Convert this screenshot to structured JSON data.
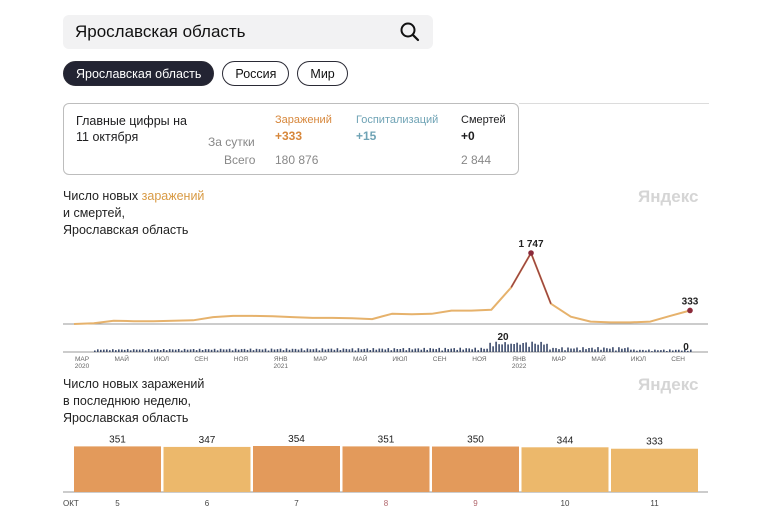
{
  "search": {
    "value": "Ярославская область"
  },
  "chips": [
    "Ярославская область",
    "Россия",
    "Мир"
  ],
  "stats": {
    "heading_line1": "Главные цифры на",
    "heading_line2": "11 октября",
    "row_day": "За сутки",
    "row_total": "Всего",
    "infections": {
      "label": "Заражений",
      "day": "+333",
      "total": "180 876"
    },
    "hospital": {
      "label": "Госпитализаций",
      "day": "+15"
    },
    "deaths": {
      "label": "Смертей",
      "day": "+0",
      "total": "2 844"
    }
  },
  "chart1": {
    "title_pre": "Число новых ",
    "title_highlight": "заражений",
    "title_line2": "и смертей,",
    "title_line3": "Ярославская область",
    "watermark": "Яндекс"
  },
  "chart2": {
    "title_line1": "Число новых заражений",
    "title_line2": "в последнюю неделю,",
    "title_line3": "Ярославская область",
    "watermark": "Яндекс"
  },
  "colors": {
    "infections_line": "#e6b26c",
    "peak_line": "#8b2a3a",
    "deaths_bars": "#3b4a6b",
    "hospital": "#6fa3b5",
    "bar_dark": "#e39a5b",
    "bar_light": "#ecb86b"
  },
  "chart_data": [
    {
      "type": "line",
      "title": "Число новых заражений и смертей, Ярославская область",
      "series": [
        {
          "name": "заражений",
          "x": [
            "2020-03",
            "2020-04",
            "2020-05",
            "2020-06",
            "2020-07",
            "2020-08",
            "2020-09",
            "2020-10",
            "2020-11",
            "2020-12",
            "2021-01",
            "2021-02",
            "2021-03",
            "2021-04",
            "2021-05",
            "2021-06",
            "2021-07",
            "2021-08",
            "2021-09",
            "2021-10",
            "2021-11",
            "2021-12",
            "2022-01",
            "2022-02",
            "2022-03",
            "2022-04",
            "2022-05",
            "2022-06",
            "2022-07",
            "2022-08",
            "2022-09",
            "2022-10"
          ],
          "values": [
            0,
            20,
            80,
            70,
            70,
            80,
            90,
            170,
            200,
            200,
            190,
            170,
            150,
            150,
            140,
            120,
            250,
            240,
            250,
            330,
            330,
            350,
            900,
            1747,
            500,
            180,
            60,
            40,
            40,
            60,
            200,
            333
          ]
        }
      ],
      "annotations": [
        {
          "label": "1 747",
          "x": "2022-02",
          "value": 1747
        },
        {
          "label": "333",
          "x": "2022-10",
          "value": 333
        },
        {
          "label": "20",
          "x": "2021-12",
          "value": 20
        },
        {
          "label": "0",
          "x": "2022-10",
          "value": 0
        }
      ],
      "x_ticks": [
        {
          "month": "МАР",
          "year": "2020",
          "x": "2020-03"
        },
        {
          "month": "МАЙ",
          "x": "2020-05"
        },
        {
          "month": "ИЮЛ",
          "x": "2020-07"
        },
        {
          "month": "СЕН",
          "x": "2020-09"
        },
        {
          "month": "НОЯ",
          "x": "2020-11"
        },
        {
          "month": "ЯНВ",
          "year": "2021",
          "x": "2021-01"
        },
        {
          "month": "МАР",
          "x": "2021-03"
        },
        {
          "month": "МАЙ",
          "x": "2021-05"
        },
        {
          "month": "ИЮЛ",
          "x": "2021-07"
        },
        {
          "month": "СЕН",
          "x": "2021-09"
        },
        {
          "month": "НОЯ",
          "x": "2021-11"
        },
        {
          "month": "ЯНВ",
          "year": "2022",
          "x": "2022-01"
        },
        {
          "month": "МАР",
          "x": "2022-03"
        },
        {
          "month": "МАЙ",
          "x": "2022-05"
        },
        {
          "month": "ИЮЛ",
          "x": "2022-07"
        },
        {
          "month": "СЕН",
          "x": "2022-09"
        }
      ]
    },
    {
      "type": "bar",
      "title": "Число новых заражений в последнюю неделю, Ярославская область",
      "categories": [
        "5",
        "6",
        "7",
        "8",
        "9",
        "10",
        "11"
      ],
      "month_label": "ОКТ",
      "values": [
        351,
        347,
        354,
        351,
        350,
        344,
        333
      ],
      "ylim": [
        0,
        354
      ]
    }
  ]
}
